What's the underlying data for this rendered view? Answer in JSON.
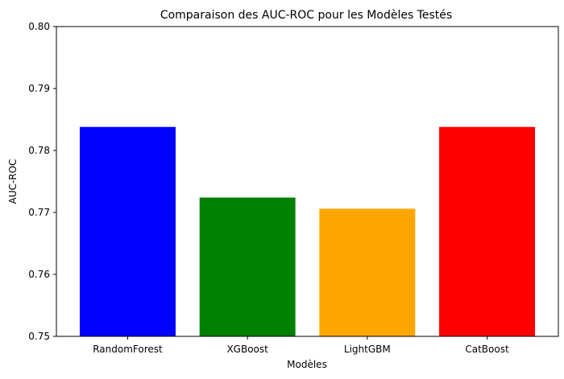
{
  "chart_data": {
    "type": "bar",
    "title": "Comparaison des AUC-ROC pour les Modèles Testés",
    "xlabel": "Modèles",
    "ylabel": "AUC-ROC",
    "categories": [
      "RandomForest",
      "XGBoost",
      "LightGBM",
      "CatBoost"
    ],
    "values": [
      0.7838,
      0.7724,
      0.7706,
      0.7838
    ],
    "colors": [
      "#0000ff",
      "#008000",
      "#ffa500",
      "#ff0000"
    ],
    "ylim": [
      0.75,
      0.8
    ],
    "yticks": [
      "0.75",
      "0.76",
      "0.77",
      "0.78",
      "0.79",
      "0.80"
    ],
    "grid": false,
    "legend": "none"
  }
}
